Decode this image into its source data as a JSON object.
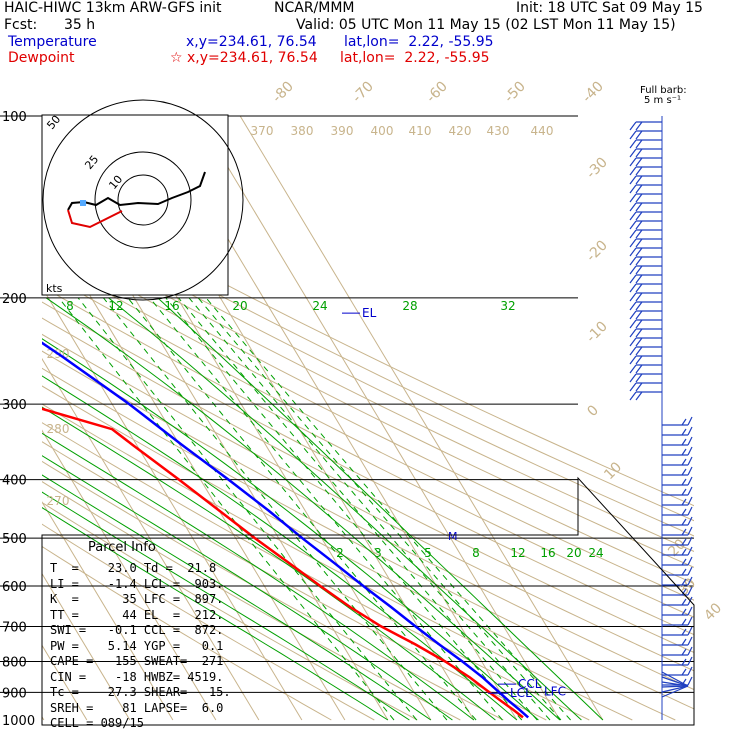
{
  "header": {
    "model": "HAIC-HIWC 13km ARW-GFS init",
    "org": "NCAR/MMM",
    "init": "Init: 18 UTC Sat 09 May 15",
    "fcst_label": "Fcst:",
    "fcst_value": "35 h",
    "valid": "Valid: 05 UTC Mon 11 May 15 (02 LST Mon 11 May 15)",
    "temperature_label": "Temperature",
    "temperature_xy": "x,y=234.61, 76.54",
    "temperature_latlon": "lat,lon=  2.22, -55.95",
    "dewpoint_label": "Dewpoint",
    "dewpoint_xy": "x,y=234.61, 76.54",
    "dewpoint_latlon": "lat,lon=  2.22, -55.95"
  },
  "barb_legend": {
    "line1": "Full barb:",
    "line2": "5 m s⁻¹"
  },
  "parcel_info": {
    "title": "Parcel Info",
    "rows": [
      "T  =    23.0 Td =  21.8",
      "LI =    -1.4 LCL =  903.",
      "K  =      35 LFC =  897.",
      "TT =      44 EL  =  212.",
      "SWI =   -0.1 CCL =  872.",
      "PW =    5.14 YGP =   0.1",
      "CAPE =   155 SWEAT=  271",
      "CIN =    -18 HWBZ= 4519.",
      "Tc =    27.3 SHEAR=   15.",
      "SREH =    81 LAPSE=  6.0",
      "CELL = 089/15"
    ]
  },
  "hodograph": {
    "units_label": "kts",
    "ring_labels": [
      "50",
      "25",
      "10"
    ]
  },
  "level_labels": {
    "el": "EL",
    "ccl": "CCL",
    "lcl": "LCL",
    "lfc": "LFC",
    "m": "M"
  },
  "colors": {
    "temperature": "#0000ff",
    "dewpoint": "#ff0000",
    "isotherm": "#c8b48c",
    "mixing_ratio": "#00a000",
    "grid": "#000000"
  },
  "chart_data": {
    "type": "line",
    "title": "",
    "ylabel": "",
    "xlabel": "",
    "y_scale": "log",
    "ylim": [
      1000,
      100
    ],
    "pressure_ticks": [
      "100",
      "200",
      "300",
      "400",
      "500",
      "600",
      "700",
      "800",
      "900",
      "1000"
    ],
    "isotherm_labels": [
      "-80",
      "-70",
      "-60",
      "-50",
      "-40",
      "-30",
      "-20",
      "-10",
      "0",
      "10",
      "20",
      "30",
      "40"
    ],
    "theta_labels": [
      "370",
      "380",
      "390",
      "400",
      "410",
      "420",
      "430",
      "440"
    ],
    "theta_labels_lower": [
      "290",
      "280",
      "270"
    ],
    "mixing_ratio_labels_upper": [
      "8",
      "12",
      "16",
      "20",
      "24",
      "28",
      "32"
    ],
    "mixing_ratio_labels_lower": [
      "2",
      "3",
      "5",
      "8",
      "12",
      "16",
      "20",
      "24"
    ],
    "series": [
      {
        "name": "Temperature",
        "p": [
          990,
          960,
          930,
          900,
          850,
          800,
          750,
          700,
          650,
          600,
          550,
          500,
          450,
          400,
          350,
          300,
          250,
          200,
          175,
          150,
          125,
          110,
          100
        ],
        "t": [
          23.0,
          22.0,
          20.8,
          19.8,
          18.0,
          15.5,
          12.5,
          9.5,
          6.5,
          3.0,
          -0.5,
          -4.5,
          -8.5,
          -13.5,
          -19.5,
          -26.0,
          -35.0,
          -47.0,
          -54.0,
          -61.0,
          -70.5,
          -77.0,
          -79.0
        ]
      },
      {
        "name": "Dewpoint",
        "p": [
          990,
          960,
          930,
          900,
          850,
          800,
          750,
          700,
          650,
          600,
          550,
          500,
          450,
          400,
          350,
          330,
          300,
          280,
          260,
          240,
          220,
          200,
          180,
          160,
          140,
          120,
          100
        ],
        "t": [
          21.8,
          20.5,
          19.0,
          17.5,
          15.0,
          11.5,
          7.0,
          1.5,
          -3.0,
          -7.0,
          -11.0,
          -15.5,
          -20.0,
          -25.0,
          -31.0,
          -33.5,
          -50.0,
          -50.5,
          -56.5,
          -54.5,
          -55.0,
          -61.0,
          -68.0,
          -76.0,
          -83.0,
          -87.0,
          -88.0
        ]
      }
    ]
  }
}
